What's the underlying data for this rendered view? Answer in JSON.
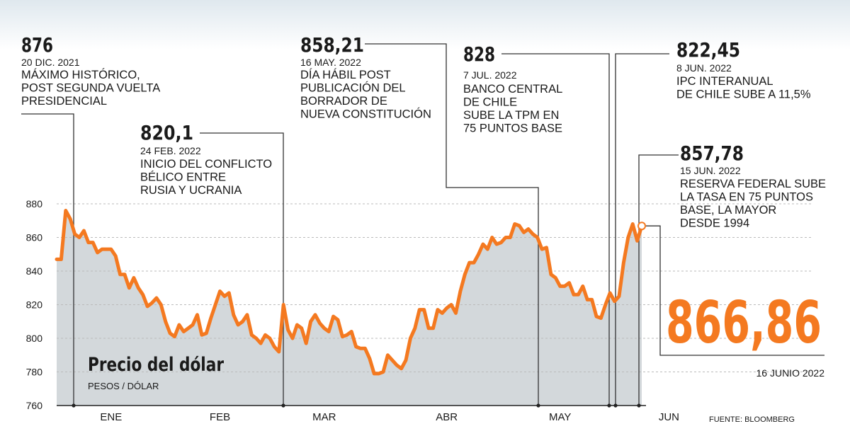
{
  "chart_data": {
    "type": "area",
    "title": "Precio del dólar",
    "subtitle": "PESOS / DÓLAR",
    "ylim": [
      760,
      880
    ],
    "yticks": [
      "760",
      "780",
      "800",
      "820",
      "840",
      "860",
      "880"
    ],
    "months": [
      "ENE",
      "FEB",
      "MAR",
      "ABR",
      "MAY",
      "JUN"
    ],
    "x_start": "2021-12-15",
    "x_end": "2022-06-16",
    "values": [
      847,
      847,
      876,
      871,
      862,
      860,
      864,
      857,
      857,
      851,
      853,
      853,
      853,
      849,
      838,
      838,
      830,
      836,
      830,
      826,
      819,
      821,
      824,
      820,
      810,
      803,
      801,
      808,
      804,
      806,
      808,
      814,
      802,
      803,
      812,
      820,
      828,
      825,
      827,
      814,
      808,
      810,
      814,
      802,
      800,
      797,
      802,
      800,
      795,
      792,
      820,
      805,
      800,
      808,
      806,
      797,
      810,
      814,
      809,
      806,
      804,
      813,
      811,
      801,
      802,
      804,
      795,
      794,
      794,
      788,
      779,
      779,
      780,
      790,
      787,
      784,
      782,
      787,
      800,
      806,
      817,
      817,
      806,
      806,
      817,
      815,
      818,
      820,
      815,
      828,
      838,
      845,
      845,
      850,
      856,
      853,
      860,
      856,
      857,
      860,
      860,
      868,
      867,
      863,
      865,
      862,
      860,
      853,
      854,
      838,
      836,
      831,
      831,
      833,
      826,
      826,
      831,
      823,
      823,
      813,
      812,
      820,
      827,
      822,
      825,
      845,
      860,
      868,
      858,
      866.86
    ],
    "annotations": [
      {
        "value": "876",
        "date": "20 DIC. 2021",
        "lines": [
          "MÁXIMO HISTÓRICO,",
          "POST SEGUNDA VUELTA",
          "PRESIDENCIAL"
        ]
      },
      {
        "value": "820,1",
        "date": "24 FEB. 2022",
        "lines": [
          "INICIO DEL CONFLICTO",
          "BÉLICO ENTRE",
          "RUSIA Y UCRANIA"
        ]
      },
      {
        "value": "858,21",
        "date": "16 MAY. 2022",
        "lines": [
          "DÍA HÁBIL POST",
          "PUBLICACIÓN DEL",
          "BORRADOR DE",
          "NUEVA CONSTITUCIÓN"
        ]
      },
      {
        "value": "828",
        "date": "7 JUL. 2022",
        "lines": [
          "BANCO CENTRAL",
          "DE CHILE",
          "SUBE LA TPM EN",
          "75 PUNTOS BASE"
        ]
      },
      {
        "value": "822,45",
        "date": "8 JUN. 2022",
        "lines": [
          "IPC INTERANUAL",
          "DE CHILE SUBE A 11,5%"
        ]
      },
      {
        "value": "857,78",
        "date": "15 JUN. 2022",
        "lines": [
          "RESERVA FEDERAL SUBE",
          "LA TASA EN 75 PUNTOS",
          "BASE, LA MAYOR",
          "DESDE 1994"
        ]
      }
    ],
    "highlight": {
      "value": "866,86",
      "date": "16 JUNIO 2022"
    },
    "source": "FUENTE: BLOOMBERG",
    "colors": {
      "line": "#f47920",
      "area": "#d3d8db",
      "highlight": "#f47920",
      "text": "#1a1a1a",
      "grid": "#bbbbbb"
    }
  }
}
